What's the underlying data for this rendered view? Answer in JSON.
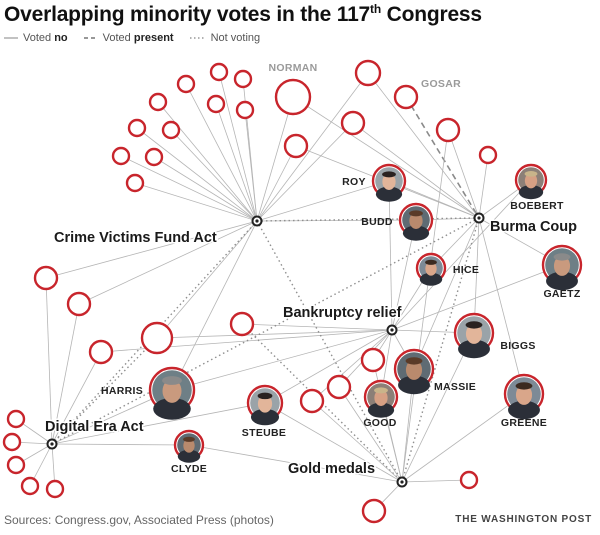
{
  "header": {
    "title_main": "Overlapping minority votes in the 117",
    "title_sup": "th",
    "title_end": " Congress"
  },
  "legend": [
    {
      "label_pre": "Voted ",
      "label_strong": "no",
      "line": "solid"
    },
    {
      "label_pre": "Voted ",
      "label_strong": "present",
      "line": "dashed"
    },
    {
      "label_pre": "",
      "label_strong": "Not voting",
      "line": "dotted"
    }
  ],
  "colors": {
    "node_ring": "#c8252c",
    "edge": "#b5b5b5",
    "edge_present": "#8a8a8a",
    "hub": "#222222",
    "gray_label": "#9a9a9a"
  },
  "hubs": [
    {
      "id": "crime",
      "label": "Crime Victims Fund Act"
    },
    {
      "id": "burma",
      "label": "Burma Coup"
    },
    {
      "id": "bankruptcy",
      "label": "Bankruptcy relief"
    },
    {
      "id": "digital",
      "label": "Digital Era Act"
    },
    {
      "id": "gold",
      "label": "Gold medals"
    }
  ],
  "members": [
    {
      "label": "NORMAN",
      "photo": false,
      "votes": {
        "no": [
          "crime",
          "burma"
        ]
      }
    },
    {
      "label": "GOSAR",
      "photo": false,
      "votes": {
        "present": [
          "burma"
        ]
      }
    },
    {
      "label": "ROY",
      "photo": true,
      "votes": {
        "no": [
          "crime",
          "burma",
          "bankruptcy"
        ]
      }
    },
    {
      "label": "BUDD",
      "photo": true,
      "votes": {
        "no": [
          "crime",
          "burma",
          "bankruptcy"
        ]
      }
    },
    {
      "label": "BOEBERT",
      "photo": true,
      "votes": {
        "no": [
          "burma",
          "bankruptcy"
        ]
      }
    },
    {
      "label": "HICE",
      "photo": true,
      "votes": {
        "no": [
          "burma",
          "bankruptcy"
        ]
      }
    },
    {
      "label": "GAETZ",
      "photo": true,
      "votes": {
        "no": [
          "burma",
          "bankruptcy"
        ]
      }
    },
    {
      "label": "BIGGS",
      "photo": true,
      "votes": {
        "no": [
          "burma",
          "bankruptcy",
          "gold"
        ]
      }
    },
    {
      "label": "MASSIE",
      "photo": true,
      "votes": {
        "no": [
          "burma",
          "bankruptcy",
          "gold"
        ]
      }
    },
    {
      "label": "GOOD",
      "photo": true,
      "votes": {
        "no": [
          "bankruptcy",
          "gold"
        ]
      }
    },
    {
      "label": "GREENE",
      "photo": true,
      "votes": {
        "no": [
          "burma",
          "gold"
        ]
      }
    },
    {
      "label": "HARRIS",
      "photo": true,
      "votes": {
        "no": [
          "digital",
          "bankruptcy",
          "crime"
        ]
      }
    },
    {
      "label": "STEUBE",
      "photo": true,
      "votes": {
        "no": [
          "digital",
          "gold",
          "bankruptcy"
        ]
      }
    },
    {
      "label": "CLYDE",
      "photo": true,
      "votes": {
        "no": [
          "digital",
          "gold"
        ]
      }
    }
  ],
  "footer": {
    "sources": "Sources: Congress.gov, Associated Press (photos)",
    "brand": "THE WASHINGTON POST"
  }
}
